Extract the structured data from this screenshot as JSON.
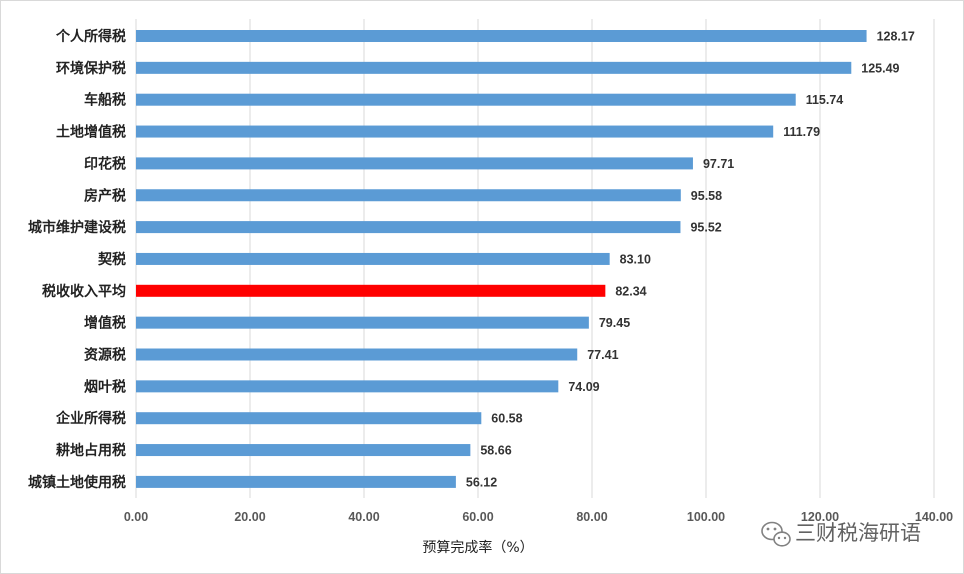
{
  "chart_data": {
    "type": "bar",
    "orientation": "horizontal",
    "categories": [
      "个人所得税",
      "环境保护税",
      "车船税",
      "土地增值税",
      "印花税",
      "房产税",
      "城市维护建设税",
      "契税",
      "税收收入平均",
      "增值税",
      "资源税",
      "烟叶税",
      "企业所得税",
      "耕地占用税",
      "城镇土地使用税"
    ],
    "values": [
      128.17,
      125.49,
      115.74,
      111.79,
      97.71,
      95.58,
      95.52,
      83.1,
      82.34,
      79.45,
      77.41,
      74.09,
      60.58,
      58.66,
      56.12
    ],
    "value_labels": [
      "128.17",
      "125.49",
      "115.74",
      "111.79",
      "97.71",
      "95.58",
      "95.52",
      "83.10",
      "82.34",
      "79.45",
      "77.41",
      "74.09",
      "60.58",
      "58.66",
      "56.12"
    ],
    "highlight_category": "税收收入平均",
    "xlim": [
      0,
      140
    ],
    "xticks": [
      "0.00",
      "20.00",
      "40.00",
      "60.00",
      "80.00",
      "100.00",
      "120.00",
      "140.00"
    ],
    "xlabel": "预算完成率（%）",
    "ylabel": "",
    "title": "",
    "grid": "vertical",
    "legend": "none",
    "colors": {
      "bar": "#5b9bd5",
      "highlight": "#ff0000",
      "highlight_label": "#ff0000",
      "grid": "#d9d9d9"
    }
  },
  "watermark": {
    "text": "三财税海研语",
    "icon": "wechat-icon"
  }
}
